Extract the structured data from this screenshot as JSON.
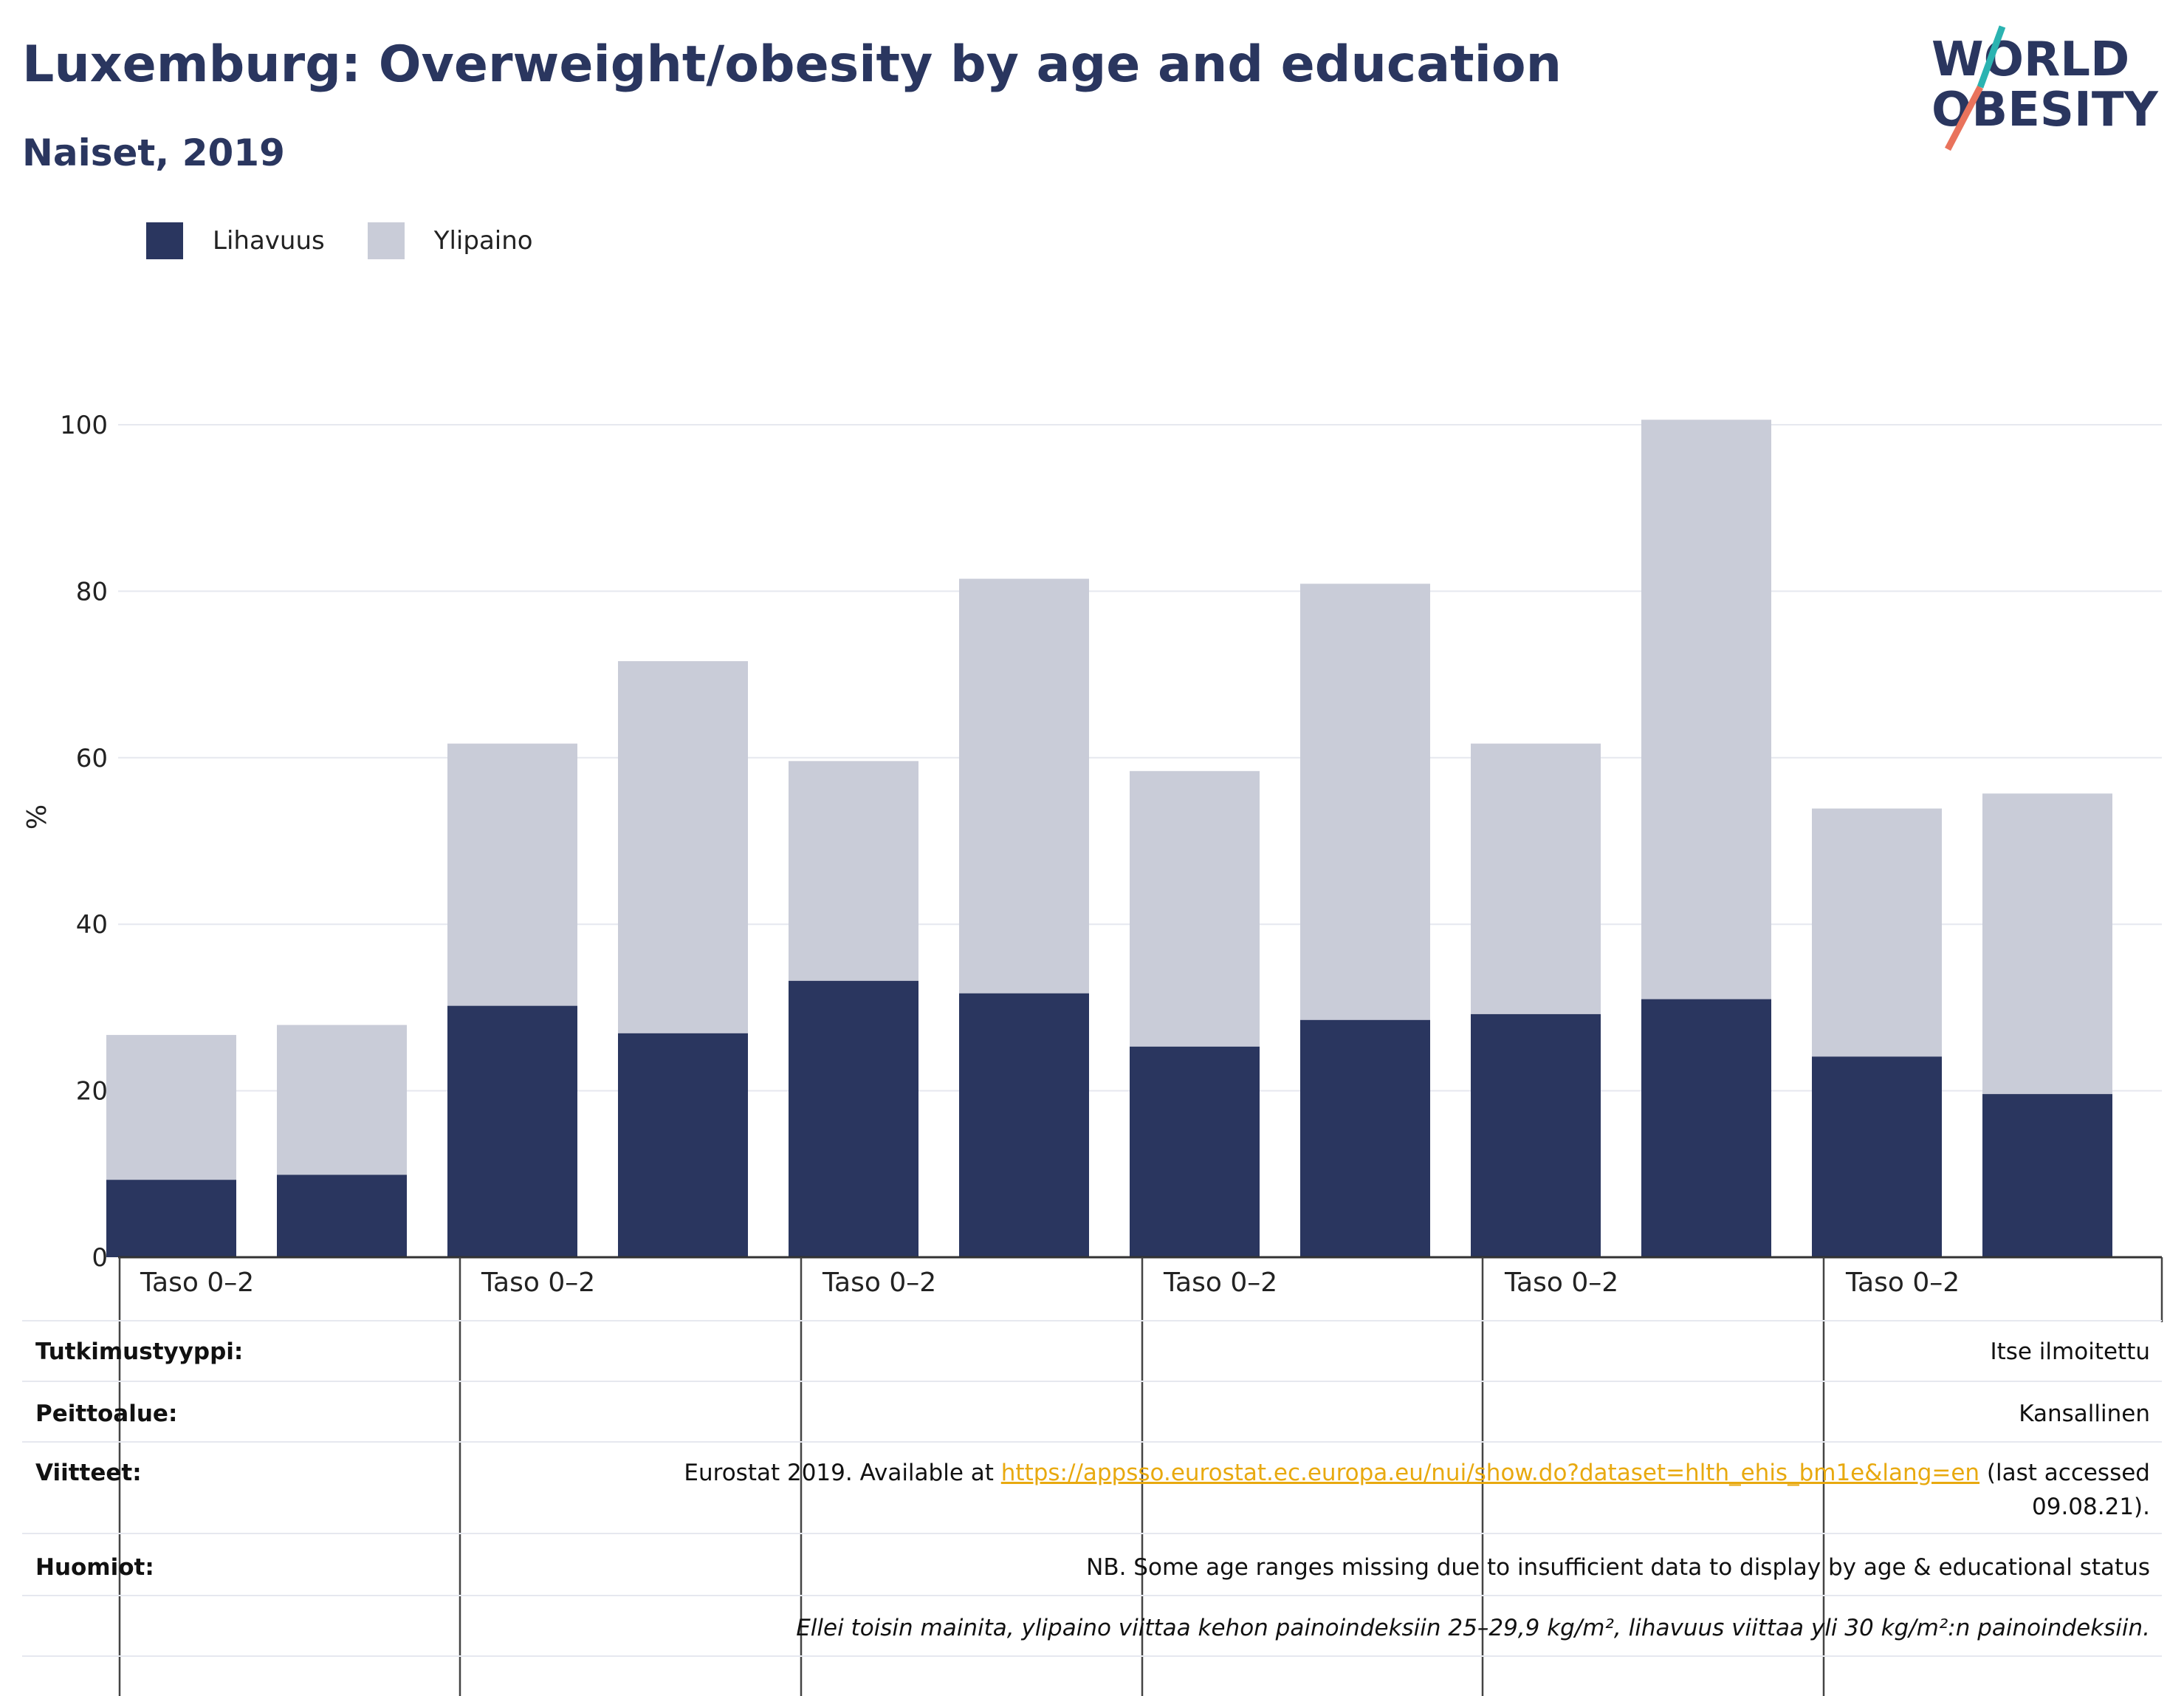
{
  "title": "Luxemburg: Overweight/obesity by age and education",
  "subtitle": "Naiset, 2019",
  "logo": {
    "line1": "WORLD",
    "line2": "OBESITY",
    "colors": {
      "text": "#2a365f",
      "slash_top": "#2bb3b1",
      "slash_bottom": "#e9735c"
    }
  },
  "legend": [
    {
      "label": "Lihavuus",
      "color": "#2a365f"
    },
    {
      "label": "Ylipaino",
      "color": "#c9ccd8"
    }
  ],
  "chart_data": {
    "type": "bar",
    "stacked": true,
    "ylabel": "%",
    "ylim": [
      0,
      100
    ],
    "yticks": [
      0,
      20,
      40,
      60,
      80,
      100
    ],
    "grid": true,
    "legend_placement": "top-left",
    "group_labels": [
      "Taso 0–2",
      "Taso 0–2",
      "Taso 0–2",
      "Taso 0–2",
      "Taso 0–2",
      "Taso 0–2"
    ],
    "bars_per_group": 2,
    "series": [
      {
        "name": "Lihavuus",
        "color": "#2a365f",
        "values": [
          9.3,
          9.9,
          30.2,
          26.9,
          33.2,
          31.7,
          25.3,
          28.5,
          29.2,
          31.0,
          24.1,
          19.6
        ]
      },
      {
        "name": "Ylipaino",
        "color": "#c9ccd8",
        "values": [
          17.4,
          18.0,
          31.5,
          44.7,
          26.4,
          49.8,
          33.1,
          52.4,
          32.5,
          69.6,
          29.8,
          36.1
        ]
      }
    ]
  },
  "info_rows": {
    "study_type": {
      "label": "Tutkimustyyppi:",
      "value": "Itse ilmoitettu"
    },
    "coverage": {
      "label": "Peittoalue:",
      "value": "Kansallinen"
    },
    "references": {
      "label": "Viitteet:",
      "value_before": "Eurostat 2019. Available at ",
      "link": "https://appsso.eurostat.ec.europa.eu/nui/show.do?dataset=hlth_ehis_bm1e&lang=en",
      "value_after": " (last accessed",
      "value_line2": "09.08.21)."
    },
    "notes": {
      "label": "Huomiot:",
      "value": "NB. Some age ranges missing due to insufficient data to display by age & educational status"
    },
    "definition": {
      "value": "Ellei toisin mainita, ylipaino viittaa kehon painoindeksiin 25–29,9 kg/m², lihavuus viittaa yli 30 kg/m²:n painoindeksiin."
    }
  }
}
